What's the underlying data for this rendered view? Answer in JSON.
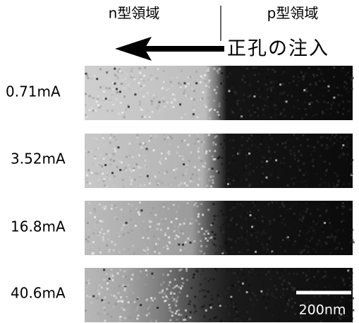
{
  "header": {
    "n_region": "n型領域",
    "p_region": "p型領域",
    "arrow_label": "正孔の注入"
  },
  "rows": [
    "0.71mA",
    "3.52mA",
    "16.8mA",
    "40.6mA"
  ],
  "scale_bar": "200nm"
}
